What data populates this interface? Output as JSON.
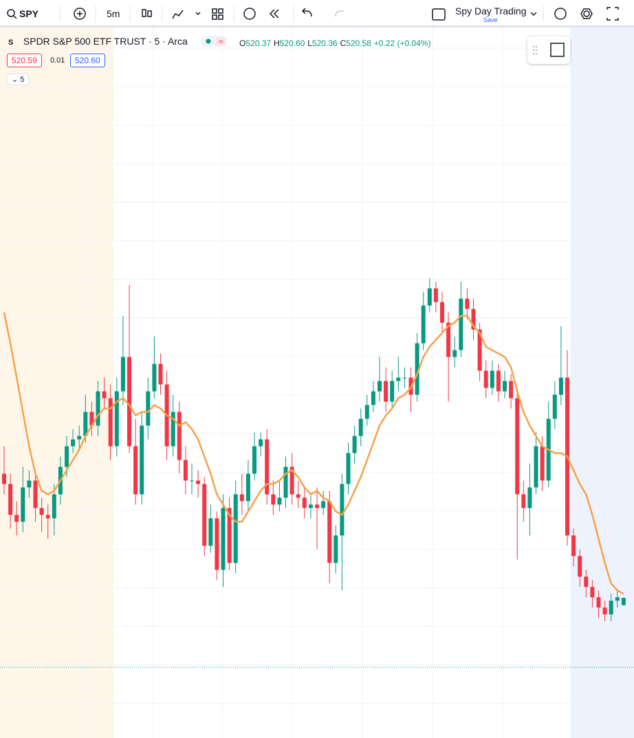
{
  "toolbar": {
    "symbol": "SPY",
    "interval": "5m",
    "layout_name": "Spy Day Trading",
    "save": "Save"
  },
  "legend": {
    "title": "SPDR S&P 500 ETF TRUST · 5 · Arca",
    "symbol_badge": "S",
    "o_label": "O",
    "open": "520.37",
    "h_label": "H",
    "high": "520.60",
    "l_label": "L",
    "low": "520.36",
    "c_label": "C",
    "close": "520.58",
    "change": "+0.22 (+0.04%)",
    "bid": "520.59",
    "spread": "0.01",
    "ask": "520.60",
    "indicator": "5"
  },
  "chart_data": {
    "type": "candlestick",
    "up_color": "#089981",
    "down_color": "#f23645",
    "ylim": [
      516.5,
      537.2
    ],
    "open": [
      524.2,
      523.9,
      523.0,
      522.8,
      523.8,
      524.0,
      523.2,
      523.0,
      522.9,
      523.6,
      524.4,
      525.0,
      525.2,
      525.3,
      526.0,
      525.6,
      526.6,
      526.4,
      525.0,
      526.6,
      527.6,
      525.0,
      523.6,
      525.6,
      526.6,
      527.4,
      526.8,
      525.0,
      526.0,
      524.6,
      524.0,
      524.0,
      523.9,
      522.1,
      522.9,
      521.4,
      523.2,
      521.6,
      523.6,
      523.4,
      524.2,
      525.0,
      525.2,
      523.6,
      523.3,
      523.5,
      524.4,
      523.6,
      523.5,
      523.2,
      523.3,
      523.2,
      523.4,
      521.6,
      522.4,
      523.9,
      524.8,
      525.3,
      525.8,
      526.2,
      526.6,
      526.9,
      526.3,
      526.9,
      527.0,
      527.0,
      526.5,
      528.0,
      529.1,
      529.6,
      529.2,
      528.6,
      527.6,
      527.8,
      529.3,
      529.0,
      528.4,
      527.2,
      526.7,
      527.2,
      526.6,
      526.9,
      526.4,
      523.6,
      523.2,
      523.8,
      525.0,
      524.0,
      525.8,
      526.5,
      527.0,
      522.4,
      521.8,
      521.2,
      520.9,
      520.6,
      520.3,
      520.1,
      520.5,
      520.37
    ],
    "high": [
      525.0,
      524.2,
      523.4,
      524.4,
      524.3,
      524.3,
      523.5,
      523.3,
      523.9,
      524.7,
      525.3,
      525.5,
      525.6,
      526.5,
      526.3,
      526.9,
      527.0,
      526.8,
      527.0,
      528.8,
      529.7,
      525.8,
      526.0,
      527.0,
      528.2,
      527.7,
      527.2,
      526.5,
      526.3,
      525.0,
      524.5,
      524.3,
      524.1,
      523.3,
      523.1,
      523.6,
      523.5,
      524.0,
      524.2,
      524.6,
      525.4,
      525.4,
      525.5,
      524.0,
      524.0,
      524.7,
      524.8,
      524.0,
      523.8,
      523.6,
      523.8,
      523.7,
      523.7,
      522.7,
      524.2,
      525.1,
      525.6,
      526.1,
      526.5,
      526.9,
      527.6,
      527.3,
      527.2,
      527.6,
      527.3,
      527.3,
      528.3,
      529.5,
      529.9,
      529.8,
      529.5,
      528.9,
      528.2,
      529.8,
      529.6,
      529.3,
      528.6,
      527.5,
      527.5,
      527.4,
      527.2,
      527.1,
      526.7,
      524.0,
      524.5,
      525.4,
      525.3,
      526.3,
      526.9,
      528.5,
      527.8,
      522.6,
      522.0,
      521.4,
      521.1,
      520.8,
      520.5,
      520.7,
      520.8,
      520.6
    ],
    "low": [
      523.6,
      522.6,
      522.4,
      522.5,
      523.5,
      522.8,
      522.5,
      522.3,
      522.4,
      523.3,
      524.1,
      524.8,
      524.9,
      525.1,
      525.3,
      525.3,
      526.1,
      524.6,
      524.7,
      526.2,
      524.8,
      523.3,
      523.3,
      525.2,
      526.4,
      526.5,
      524.6,
      524.7,
      524.2,
      523.6,
      523.6,
      523.5,
      521.8,
      521.9,
      521.1,
      520.9,
      521.4,
      521.3,
      523.0,
      523.1,
      524.0,
      524.7,
      523.3,
      523.0,
      523.1,
      523.2,
      523.3,
      523.2,
      522.9,
      522.9,
      522.0,
      523.0,
      521.0,
      521.3,
      520.8,
      523.6,
      524.5,
      525.0,
      525.6,
      526.0,
      526.3,
      526.0,
      526.1,
      526.6,
      526.7,
      526.0,
      526.3,
      527.8,
      528.9,
      528.9,
      528.3,
      526.3,
      527.3,
      527.6,
      528.7,
      528.1,
      526.9,
      526.4,
      526.5,
      526.3,
      526.4,
      526.1,
      521.7,
      522.8,
      522.4,
      523.6,
      523.7,
      523.8,
      525.5,
      526.2,
      522.1,
      521.5,
      520.9,
      520.6,
      520.3,
      520.0,
      519.9,
      519.9,
      520.3,
      520.36
    ],
    "close": [
      523.9,
      523.0,
      522.8,
      523.8,
      524.0,
      523.2,
      523.0,
      522.9,
      523.6,
      524.4,
      525.0,
      525.2,
      525.3,
      526.0,
      525.6,
      526.6,
      526.4,
      525.0,
      526.6,
      527.6,
      525.0,
      523.6,
      525.6,
      526.6,
      527.4,
      526.8,
      525.0,
      526.0,
      524.6,
      524.0,
      524.0,
      523.9,
      522.1,
      522.9,
      521.4,
      523.2,
      521.6,
      523.6,
      523.4,
      524.2,
      525.0,
      525.2,
      523.6,
      523.3,
      523.5,
      524.4,
      523.6,
      523.5,
      523.2,
      523.3,
      523.2,
      523.4,
      521.6,
      522.4,
      523.9,
      524.8,
      525.3,
      525.8,
      526.2,
      526.6,
      526.9,
      526.3,
      526.9,
      527.0,
      527.0,
      526.5,
      528.0,
      529.1,
      529.6,
      529.2,
      528.6,
      527.6,
      527.8,
      529.3,
      529.0,
      528.4,
      527.2,
      526.7,
      527.2,
      526.6,
      526.9,
      526.4,
      523.6,
      523.2,
      523.8,
      525.0,
      524.0,
      525.8,
      526.5,
      527.0,
      522.4,
      521.8,
      521.2,
      520.9,
      520.6,
      520.3,
      520.1,
      520.5,
      520.6,
      520.58
    ],
    "ma_color": "#f7a04b",
    "ma_values": [
      528.9,
      528.0,
      527.0,
      526.0,
      525.0,
      524.2,
      523.7,
      523.6,
      523.7,
      524.0,
      524.3,
      524.6,
      524.9,
      525.3,
      525.6,
      525.9,
      526.1,
      526.1,
      526.3,
      526.4,
      526.2,
      525.9,
      526.0,
      526.0,
      526.2,
      526.1,
      525.9,
      525.8,
      525.6,
      525.7,
      525.5,
      525.2,
      524.7,
      524.2,
      523.6,
      523.3,
      523.0,
      522.8,
      522.8,
      523.1,
      523.4,
      523.7,
      523.9,
      523.9,
      524.0,
      524.2,
      524.3,
      524.1,
      523.8,
      523.6,
      523.7,
      523.5,
      523.4,
      523.1,
      523.0,
      523.3,
      523.7,
      524.1,
      524.6,
      525.1,
      525.6,
      525.9,
      526.1,
      526.4,
      526.5,
      526.7,
      527.1,
      527.6,
      527.9,
      528.1,
      528.3,
      528.5,
      528.6,
      528.8,
      528.8,
      528.5,
      528.3,
      527.9,
      527.8,
      527.7,
      527.6,
      527.3,
      526.6,
      526.0,
      525.6,
      525.3,
      525.0,
      524.9,
      524.8,
      524.8,
      524.7,
      524.3,
      523.9,
      523.6,
      523.0,
      522.3,
      521.6,
      521.0,
      520.8,
      520.7
    ]
  }
}
